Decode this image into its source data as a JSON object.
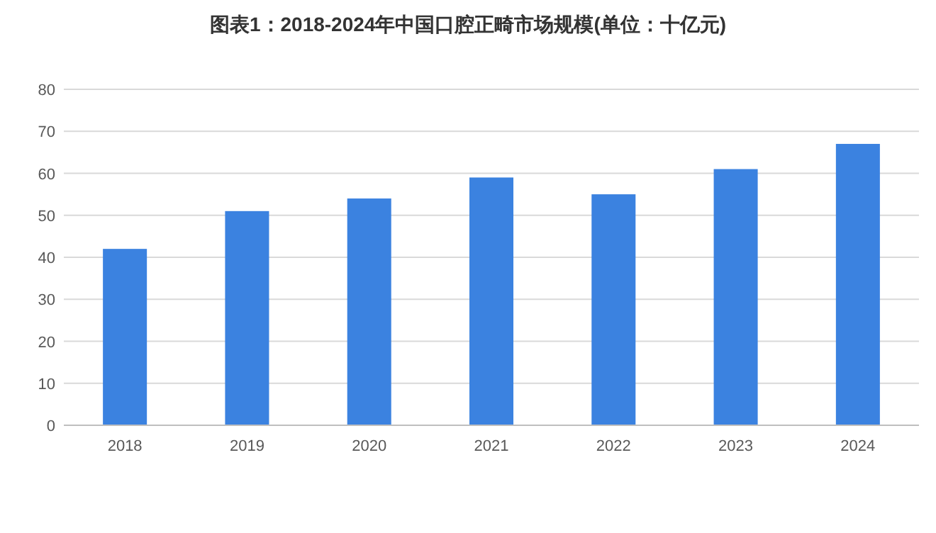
{
  "chart_data": {
    "type": "bar",
    "title": "图表1：2018-2024年中国口腔正畸市场规模(单位：十亿元)",
    "categories": [
      "2018",
      "2019",
      "2020",
      "2021",
      "2022",
      "2023",
      "2024"
    ],
    "values": [
      42,
      51,
      54,
      59,
      55,
      61,
      67
    ],
    "color": "#3b82e0",
    "ylim": [
      0,
      80
    ],
    "yticks": [
      0,
      10,
      20,
      30,
      40,
      50,
      60,
      70,
      80
    ],
    "grid": "y"
  }
}
